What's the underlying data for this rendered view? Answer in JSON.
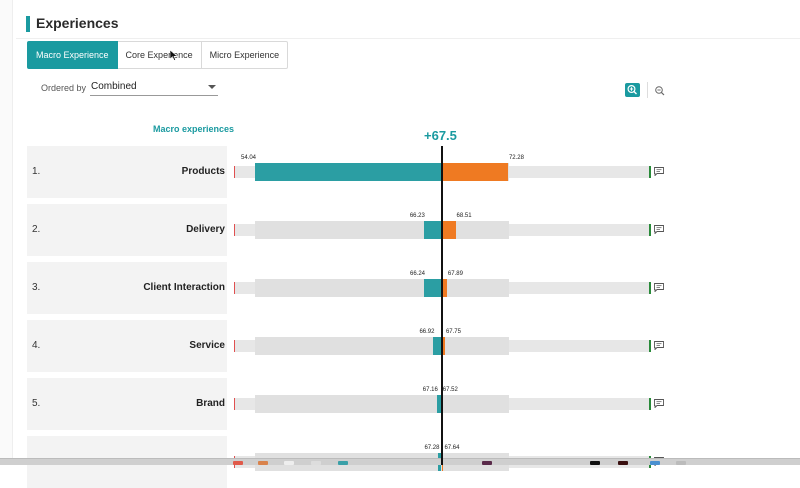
{
  "header": {
    "title": "Experiences"
  },
  "tabs": [
    {
      "label": "Macro Experience",
      "active": true
    },
    {
      "label": "Core Experience",
      "active": false
    },
    {
      "label": "Micro Experience",
      "active": false
    }
  ],
  "order": {
    "label": "Ordered by",
    "value": "Combined"
  },
  "zoom": {
    "in_icon": "zoom-in-icon",
    "out_icon": "zoom-out-icon"
  },
  "column_header": "Macro experiences",
  "score": "+67.5",
  "colors": {
    "accent": "#1a9aa0",
    "teal_bar": "#2b9ea3",
    "orange_bar": "#ef7a22",
    "track": "#e0e0e0"
  },
  "rows": [
    {
      "num": "1.",
      "name": "Products",
      "left": "54.04",
      "right": "72.28",
      "left_value": 54.04,
      "right_value": 72.28
    },
    {
      "num": "2.",
      "name": "Delivery",
      "left": "66.23",
      "right": "68.51",
      "left_value": 66.23,
      "right_value": 68.51
    },
    {
      "num": "3.",
      "name": "Client Interaction",
      "left": "66.24",
      "right": "67.89",
      "left_value": 66.24,
      "right_value": 67.89
    },
    {
      "num": "4.",
      "name": "Service",
      "left": "66.92",
      "right": "67.75",
      "left_value": 66.92,
      "right_value": 67.75
    },
    {
      "num": "5.",
      "name": "Brand",
      "left": "67.16",
      "right": "67.52",
      "left_value": 67.16,
      "right_value": 67.52
    },
    {
      "num": "",
      "name": "",
      "left": "67.28",
      "right": "67.64",
      "left_value": 67.28,
      "right_value": 67.64
    }
  ]
}
